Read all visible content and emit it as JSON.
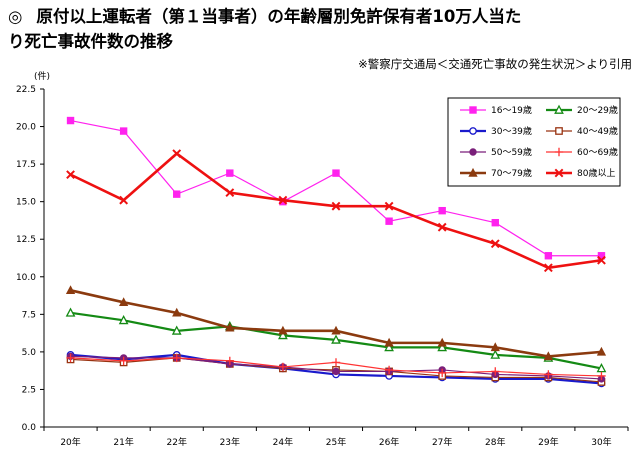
{
  "header": {
    "mark": "◎",
    "title_line1": "原付以上運転者（第１当事者）の年齢層別免許保有者10万人当た",
    "title_line2": "り死亡事故件数の推移",
    "source": "※警察庁交通局＜交通死亡事故の発生状況＞より引用"
  },
  "chart_data": {
    "type": "line",
    "unit_label": "(件)",
    "categories": [
      "20年",
      "21年",
      "22年",
      "23年",
      "24年",
      "25年",
      "26年",
      "27年",
      "28年",
      "29年",
      "30年"
    ],
    "ylim": [
      0,
      22.5
    ],
    "yticks": [
      "0.0",
      "2.5",
      "5.0",
      "7.5",
      "10.0",
      "12.5",
      "15.0",
      "17.5",
      "20.0",
      "22.5"
    ],
    "legend_position": "top-right",
    "grid": false,
    "series": [
      {
        "name": "16～19歳",
        "color": "#ff22ee",
        "marker": "square-filled",
        "values": [
          20.4,
          19.7,
          15.5,
          16.9,
          15.0,
          16.9,
          13.7,
          14.4,
          13.6,
          11.4,
          11.4
        ]
      },
      {
        "name": "20～29歳",
        "color": "#148a14",
        "marker": "triangle-open",
        "values": [
          7.6,
          7.1,
          6.4,
          6.7,
          6.1,
          5.8,
          5.3,
          5.3,
          4.8,
          4.6,
          3.9
        ]
      },
      {
        "name": "30～39歳",
        "color": "#1a1acc",
        "marker": "circle-open",
        "values": [
          4.8,
          4.5,
          4.8,
          4.2,
          3.9,
          3.5,
          3.4,
          3.3,
          3.2,
          3.2,
          2.9
        ]
      },
      {
        "name": "40～49歳",
        "color": "#993311",
        "marker": "square-open",
        "values": [
          4.5,
          4.3,
          4.6,
          4.2,
          3.9,
          3.8,
          3.7,
          3.4,
          3.3,
          3.3,
          3.0
        ]
      },
      {
        "name": "50～59歳",
        "color": "#7a1f7a",
        "marker": "circle-filled",
        "values": [
          4.7,
          4.6,
          4.6,
          4.2,
          4.0,
          3.7,
          3.7,
          3.8,
          3.5,
          3.4,
          3.2
        ]
      },
      {
        "name": "60～69歳",
        "color": "#ff3333",
        "marker": "plus",
        "values": [
          4.6,
          4.4,
          4.6,
          4.4,
          4.0,
          4.3,
          3.8,
          3.6,
          3.7,
          3.5,
          3.4
        ]
      },
      {
        "name": "70～79歳",
        "color": "#8b3a0f",
        "marker": "triangle-filled",
        "values": [
          9.1,
          8.3,
          7.6,
          6.6,
          6.4,
          6.4,
          5.6,
          5.6,
          5.3,
          4.7,
          5.0
        ]
      },
      {
        "name": "80歳以上",
        "color": "#ee1111",
        "marker": "x",
        "values": [
          16.8,
          15.1,
          18.2,
          15.6,
          15.1,
          14.7,
          14.7,
          13.3,
          12.2,
          10.6,
          11.1
        ]
      }
    ]
  }
}
